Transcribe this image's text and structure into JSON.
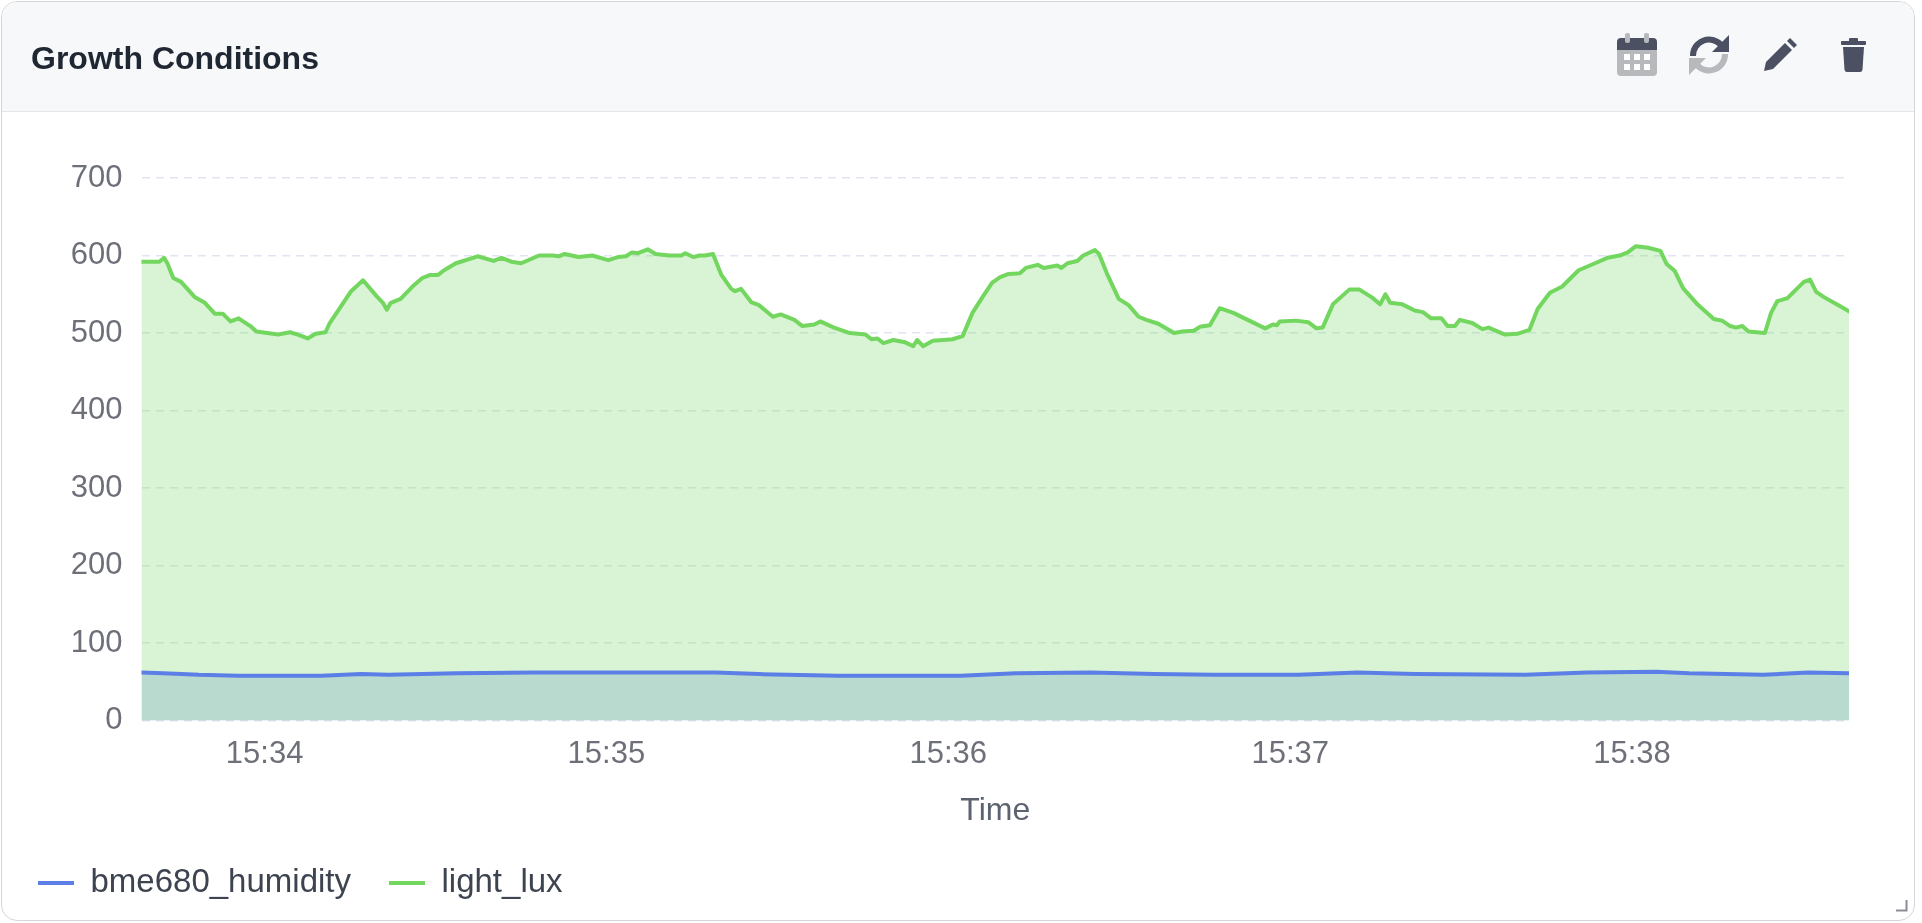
{
  "chart_data": {
    "type": "area",
    "title": "Growth Conditions",
    "xlabel": "Time",
    "xlim": [
      15.56067,
      15.64391
    ],
    "xticks": [
      {
        "value": 15.56667,
        "label": "15:34"
      },
      {
        "value": 15.58333,
        "label": "15:35"
      },
      {
        "value": 15.6,
        "label": "15:36"
      },
      {
        "value": 15.61667,
        "label": "15:37"
      },
      {
        "value": 15.63333,
        "label": "15:38"
      }
    ],
    "ylim": [
      0,
      700
    ],
    "yticks": [
      0,
      100,
      200,
      300,
      400,
      500,
      600,
      700
    ],
    "grid": "y",
    "legend": "bottom left",
    "series": [
      {
        "name": "bme680_humidity",
        "color": "#5b7fe6",
        "x": [
          15.56067,
          15.56173,
          15.56347,
          15.5654,
          15.56945,
          15.57137,
          15.57272,
          15.576,
          15.57985,
          15.58865,
          15.59077,
          15.59463,
          15.6006,
          15.6033,
          15.60697,
          15.61005,
          15.61293,
          15.61708,
          15.61995,
          15.62275,
          15.62813,
          15.63113,
          15.63452,
          15.63612,
          15.63972,
          15.64192,
          15.64391
        ],
        "values": [
          62,
          61,
          59,
          58,
          58,
          60,
          59,
          61,
          62,
          62,
          60,
          58,
          58,
          61,
          62,
          60,
          59,
          59,
          62,
          60,
          59,
          62,
          63,
          61,
          59,
          62,
          61
        ]
      },
      {
        "name": "light_lux",
        "color": "#72d65f",
        "x": [
          15.56067,
          15.56154,
          15.56177,
          15.56193,
          15.56222,
          15.5626,
          15.56328,
          15.56376,
          15.56424,
          15.56463,
          15.56501,
          15.5654,
          15.56598,
          15.56627,
          15.56733,
          15.56791,
          15.56829,
          15.56877,
          15.56916,
          15.56964,
          15.56983,
          15.57041,
          15.57089,
          15.57147,
          15.57215,
          15.57244,
          15.57263,
          15.57282,
          15.5733,
          15.57388,
          15.57436,
          15.57475,
          15.57513,
          15.57542,
          15.576,
          15.57706,
          15.57783,
          15.57822,
          15.5787,
          15.57918,
          15.58005,
          15.58072,
          15.58101,
          15.5813,
          15.58198,
          15.58265,
          15.58342,
          15.5839,
          15.58429,
          15.58458,
          15.58487,
          15.58535,
          15.58573,
          15.58641,
          15.58699,
          15.58718,
          15.58757,
          15.58786,
          15.58814,
          15.58853,
          15.58894,
          15.58942,
          15.58961,
          15.5899,
          15.59039,
          15.59077,
          15.59145,
          15.59183,
          15.5925,
          15.59289,
          15.59347,
          15.59376,
          15.59443,
          15.5952,
          15.59597,
          15.59626,
          15.59655,
          15.59684,
          15.59732,
          15.5979,
          15.59829,
          15.59848,
          15.59877,
          15.59925,
          15.60021,
          15.6007,
          15.60118,
          15.60166,
          15.60214,
          15.60253,
          15.60291,
          15.60349,
          15.60378,
          15.60436,
          15.60465,
          15.60532,
          15.60552,
          15.60581,
          15.60629,
          15.60658,
          15.60715,
          15.60735,
          15.60773,
          15.60831,
          15.60879,
          15.60928,
          15.60966,
          15.61024,
          15.61101,
          15.6114,
          15.61197,
          15.61226,
          15.61275,
          15.61323,
          15.6139,
          15.61467,
          15.61545,
          15.61583,
          15.61602,
          15.61616,
          15.61695,
          15.61755,
          15.61795,
          15.61825,
          15.61875,
          15.61955,
          15.62005,
          15.62065,
          15.62105,
          15.62131,
          15.62154,
          15.62214,
          15.62274,
          15.62314,
          15.62354,
          15.62404,
          15.62434,
          15.6247,
          15.62494,
          15.62554,
          15.62604,
          15.62634,
          15.62714,
          15.62774,
          15.62833,
          15.62873,
          15.62933,
          15.62993,
          15.63073,
          15.63153,
          15.63213,
          15.63273,
          15.63312,
          15.63352,
          15.63412,
          15.63472,
          15.63502,
          15.63542,
          15.63582,
          15.63652,
          15.63732,
          15.63772,
          15.63812,
          15.63841,
          15.63871,
          15.63901,
          15.63981,
          15.64011,
          15.64041,
          15.64091,
          15.64171,
          15.64201,
          15.64231,
          15.64271,
          15.64331,
          15.64391
        ],
        "values": [
          592,
          592,
          597,
          590,
          571,
          566,
          546,
          539,
          525,
          525,
          515,
          519,
          509,
          502,
          498,
          501,
          498,
          493,
          499,
          501,
          512,
          535,
          554,
          568,
          547,
          539,
          530,
          539,
          544,
          560,
          571,
          575,
          575,
          581,
          590,
          599,
          593,
          597,
          592,
          590,
          600,
          600,
          599,
          602,
          598,
          600,
          594,
          598,
          599,
          604,
          603,
          608,
          602,
          600,
          600,
          603,
          598,
          600,
          600,
          602,
          575,
          557,
          554,
          557,
          540,
          536,
          521,
          524,
          517,
          509,
          511,
          515,
          507,
          500,
          498,
          492,
          493,
          487,
          491,
          488,
          483,
          491,
          483,
          490,
          492,
          496,
          526,
          546,
          565,
          572,
          576,
          577,
          584,
          588,
          584,
          587,
          584,
          590,
          593,
          600,
          607,
          602,
          577,
          544,
          536,
          521,
          517,
          512,
          500,
          502,
          503,
          508,
          510,
          532,
          526,
          516,
          506,
          511,
          510,
          515,
          516,
          514,
          506,
          507,
          537,
          556,
          556,
          546,
          537,
          550,
          539,
          537,
          529,
          527,
          519,
          519,
          509,
          509,
          517,
          513,
          505,
          507,
          498,
          499,
          504,
          531,
          552,
          560,
          581,
          590,
          597,
          600,
          604,
          612,
          610,
          606,
          589,
          580,
          558,
          537,
          518,
          516,
          509,
          507,
          509,
          502,
          500,
          526,
          541,
          545,
          566,
          569,
          553,
          546,
          537,
          528
        ]
      }
    ]
  }
}
